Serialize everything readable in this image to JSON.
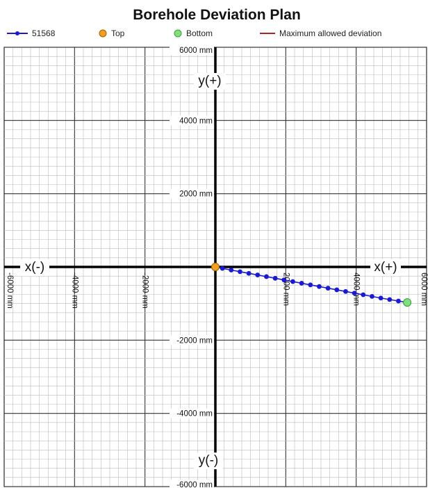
{
  "title": "Borehole Deviation Plan",
  "colors": {
    "series": "#1a1ad0",
    "top": "#f0a020",
    "bottom": "#80e080",
    "max_deviation": "#b22222",
    "grid_major": "#333333",
    "grid_minor": "#bbbbbb",
    "axis": "#000000"
  },
  "legend": [
    {
      "label": "51568",
      "icon": "line-dot-marker",
      "color": "#1a1ad0"
    },
    {
      "label": "Top",
      "icon": "orange-circle-marker",
      "color": "#f0a020"
    },
    {
      "label": "Bottom",
      "icon": "green-circle-marker",
      "color": "#80e080"
    },
    {
      "label": "Maximum allowed deviation",
      "icon": "red-line",
      "color": "#b22222"
    }
  ],
  "axis_labels": {
    "x_neg": "x(-)",
    "x_pos": "x(+)",
    "y_pos": "y(+)",
    "y_neg": "y(-)"
  },
  "chart_data": {
    "type": "scatter",
    "title": "Borehole Deviation Plan",
    "xlim": [
      -6000,
      6000
    ],
    "ylim": [
      -6000,
      6000
    ],
    "unit": "mm",
    "grid": true,
    "legend_position": "top",
    "x_ticks": [
      "-6000 mm",
      "-4000 mm",
      "-2000 mm",
      "2000 mm",
      "4000 mm",
      "6000 mm"
    ],
    "y_ticks": [
      "6000 mm",
      "4000 mm",
      "2000 mm",
      "-2000 mm",
      "-4000 mm",
      "-6000 mm"
    ],
    "series": [
      {
        "name": "51568",
        "x": [
          0,
          200,
          450,
          700,
          950,
          1200,
          1450,
          1700,
          1950,
          2200,
          2450,
          2700,
          2950,
          3200,
          3450,
          3700,
          3950,
          4200,
          4450,
          4700,
          4950,
          5200,
          5450
        ],
        "y": [
          0,
          -40,
          -85,
          -130,
          -175,
          -220,
          -265,
          -310,
          -355,
          -400,
          -445,
          -490,
          -535,
          -580,
          -625,
          -670,
          -715,
          -760,
          -805,
          -850,
          -890,
          -930,
          -970
        ]
      }
    ],
    "top_point": {
      "x": 0,
      "y": 0
    },
    "bottom_point": {
      "x": 5450,
      "y": -970
    }
  }
}
